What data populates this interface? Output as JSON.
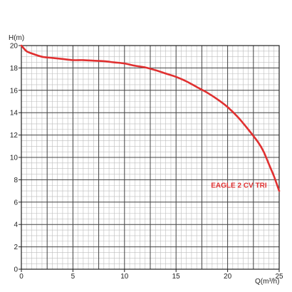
{
  "chart_data": {
    "type": "line",
    "title": "",
    "xlabel": "Q(m³/h)",
    "ylabel": "H(m)",
    "xlim": [
      0,
      25
    ],
    "ylim": [
      0,
      20
    ],
    "x_ticks": [
      0,
      5,
      10,
      15,
      20,
      25
    ],
    "y_ticks": [
      0,
      2,
      4,
      6,
      8,
      10,
      12,
      14,
      16,
      18,
      20
    ],
    "grid": true,
    "minor_grid_x_step": 0.5,
    "minor_grid_y_step": 0.5,
    "major_grid_x_step": 2.5,
    "major_grid_y_step": 2,
    "colors": {
      "curve": "#e03030",
      "minor_grid": "#bdbdbd",
      "major_grid": "#444444",
      "frame": "#222222"
    },
    "series": [
      {
        "name": "EAGLE 2 CV TRI",
        "label_position": "right-center",
        "x": [
          0,
          0.5,
          1,
          2,
          3,
          4,
          5,
          6,
          7,
          8,
          9,
          10,
          11,
          12,
          13,
          14,
          15,
          16,
          17,
          18,
          19,
          20,
          21,
          22,
          23,
          23.5,
          24,
          24.5,
          25
        ],
        "y": [
          20,
          19.5,
          19.3,
          19.0,
          18.9,
          18.8,
          18.7,
          18.7,
          18.65,
          18.6,
          18.5,
          18.4,
          18.2,
          18.05,
          17.8,
          17.5,
          17.2,
          16.8,
          16.3,
          15.8,
          15.2,
          14.5,
          13.6,
          12.5,
          11.3,
          10.5,
          9.4,
          8.3,
          7.0
        ]
      }
    ]
  }
}
